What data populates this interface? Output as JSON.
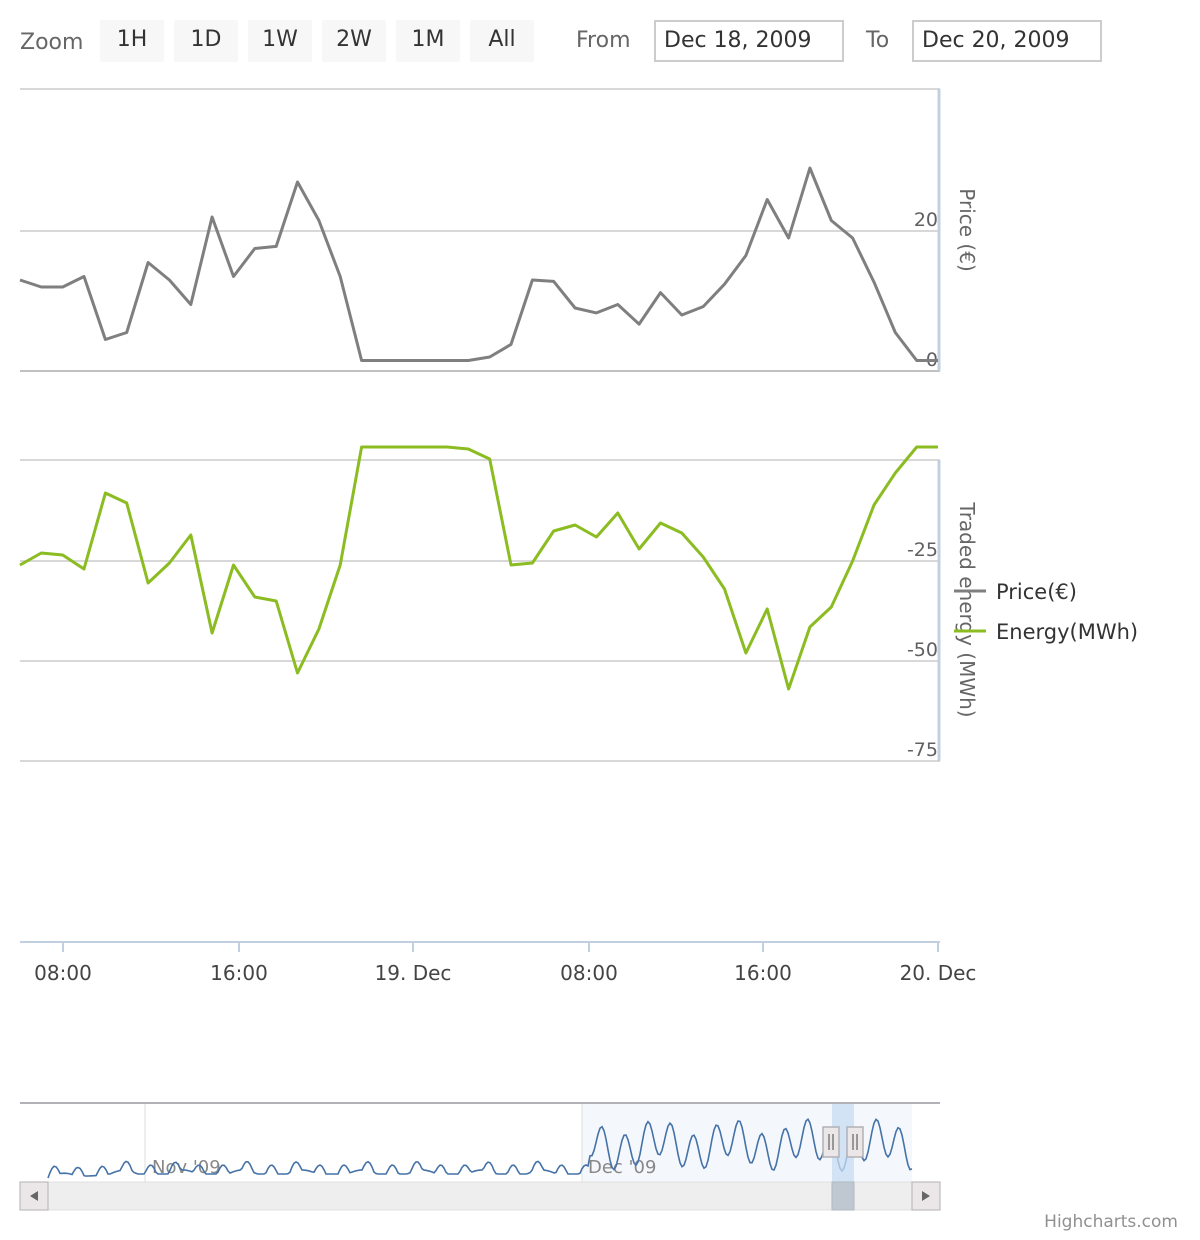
{
  "range_selector": {
    "zoom_label": "Zoom",
    "buttons": [
      "1H",
      "1D",
      "1W",
      "2W",
      "1M",
      "All"
    ],
    "from_label": "From",
    "from_value": "Dec 18, 2009",
    "to_label": "To",
    "to_value": "Dec 20, 2009"
  },
  "credits": "Highcharts.com",
  "chart_data": {
    "type": "line",
    "x_ticks": [
      "08:00",
      "16:00",
      "19. Dec",
      "08:00",
      "16:00",
      "20. Dec"
    ],
    "series": [
      {
        "name": "Price(€)",
        "color": "#7f7f7f",
        "axis": "Price (€)",
        "values": [
          13,
          12,
          12,
          13.5,
          4.5,
          5.5,
          15.5,
          13,
          9.5,
          22,
          13.5,
          17.5,
          17.8,
          27,
          21.5,
          13.5,
          1.5,
          1.5,
          1.5,
          1.5,
          1.5,
          1.5,
          2,
          3.8,
          13,
          12.8,
          9,
          8.3,
          9.5,
          6.7,
          11.2,
          8,
          9.2,
          12.4,
          16.5,
          24.5,
          19,
          29,
          21.5,
          19,
          12.7,
          5.5,
          1.5,
          1.5
        ]
      },
      {
        "name": "Energy(MWh)",
        "color": "#8bbc21",
        "axis": "Traded energy (MWh)",
        "values": [
          -26,
          -23,
          -23.5,
          -27,
          -8,
          -10.5,
          -30.5,
          -25.5,
          -18.5,
          -43,
          -26,
          -34,
          -35,
          -53,
          -42,
          -26,
          3.5,
          3.5,
          3.5,
          3.5,
          3.5,
          3,
          0.5,
          -26,
          -25.5,
          -17.5,
          -16,
          -19,
          -13,
          -22,
          -15.5,
          -18,
          -24,
          -32,
          -48,
          -37,
          -57,
          -41.5,
          -36.5,
          -25,
          -11,
          -3,
          3.5,
          3.5
        ]
      }
    ],
    "price_axis": {
      "title": "Price (€)",
      "ticks": [
        0,
        20
      ],
      "range": [
        -2,
        38
      ]
    },
    "energy_axis": {
      "title": "Traded energy (MWh)",
      "ticks": [
        -25,
        -50,
        -75
      ],
      "range": [
        -75,
        0
      ]
    },
    "legend": [
      "Price(€)",
      "Energy(MWh)"
    ],
    "navigator": {
      "labels": [
        "Nov '09",
        "Dec '09"
      ]
    }
  }
}
